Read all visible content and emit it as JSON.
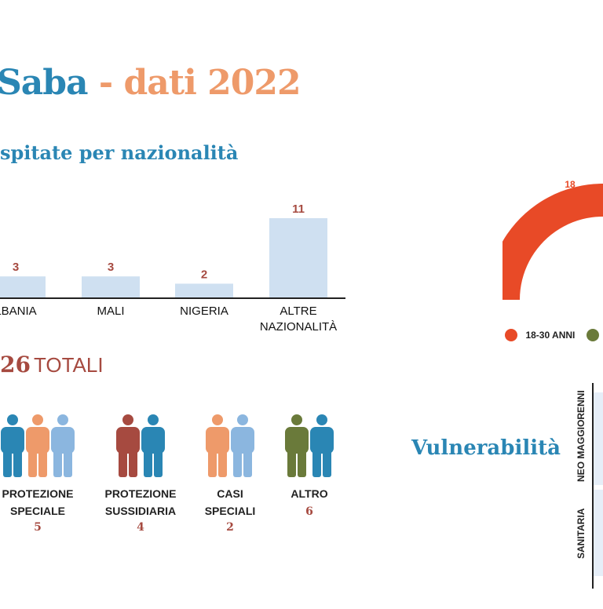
{
  "title": {
    "part1": "Saba",
    "sep": " - ",
    "part2": "dati 2022"
  },
  "subtitle": "spitate per nazionalità",
  "chart_data": [
    {
      "type": "bar",
      "categories": [
        "ALBANIA",
        "MALI",
        "NIGERIA",
        "ALTRE NAZIONALITÀ"
      ],
      "category_lines": [
        [
          "LBANIA"
        ],
        [
          "MALI"
        ],
        [
          "NIGERIA"
        ],
        [
          "ALTRE",
          "NAZIONALITÀ"
        ]
      ],
      "values": [
        3,
        3,
        2,
        11
      ],
      "ylim": [
        0,
        11
      ],
      "colors": {
        "bar": "#cfe0f1",
        "value_label": "#a64a40",
        "axis": "#222222"
      }
    },
    {
      "type": "pie",
      "labels": [
        "18-30 ANNI"
      ],
      "values": [
        18
      ],
      "colors": [
        "#e84a27",
        "#6a7a3a"
      ]
    }
  ],
  "totals": {
    "number": "26",
    "label": "TOTALI"
  },
  "people_groups": [
    {
      "label_lines": [
        "PROTEZIONE",
        "SPECIALE"
      ],
      "count": "5",
      "colors": [
        "#2a86b4",
        "#ee9a6a",
        "#8bb6df"
      ]
    },
    {
      "label_lines": [
        "PROTEZIONE",
        "SUSSIDIARIA"
      ],
      "count": "4",
      "colors": [
        "#a64a40",
        "#2a86b4"
      ]
    },
    {
      "label_lines": [
        "CASI",
        "SPECIALI"
      ],
      "count": "2",
      "colors": [
        "#ee9a6a",
        "#8bb6df"
      ]
    },
    {
      "label_lines": [
        "ALTRO"
      ],
      "count": "6",
      "colors": [
        "#6a7a3a",
        "#2a86b4"
      ]
    }
  ],
  "vulnerabilita": {
    "title": "Vulnerabilità",
    "rows": [
      "NEO MAGGIORENNI",
      "SANITARIA"
    ],
    "cell_color": "#e6eef8"
  },
  "icons": {
    "person": "person-icon"
  }
}
